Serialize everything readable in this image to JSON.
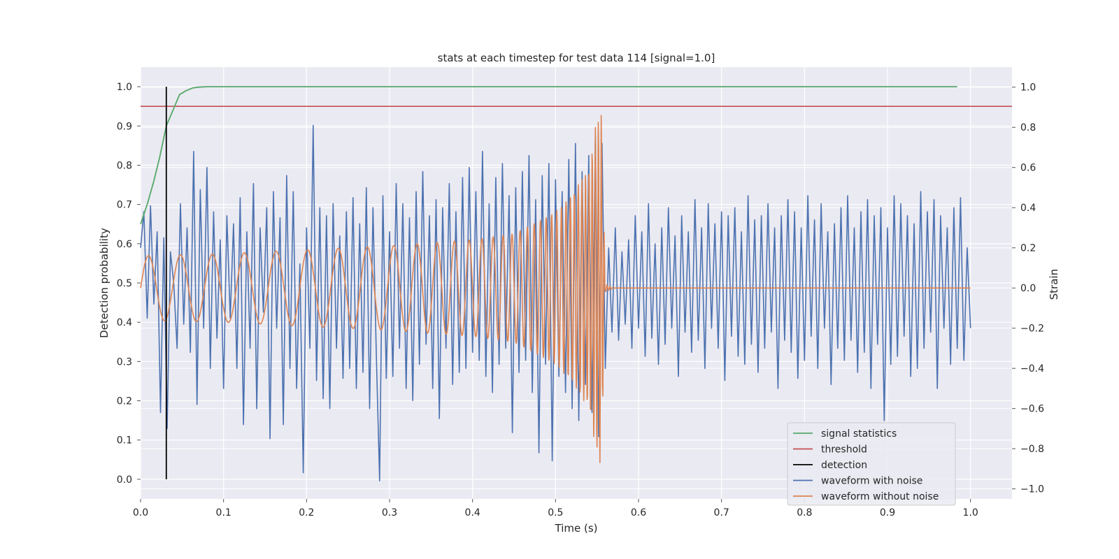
{
  "chart_data": {
    "type": "line",
    "title": "stats at each timestep for test data 114 [signal=1.0]",
    "xlabel": "Time (s)",
    "ylabel_left": "Detection probability",
    "ylabel_right": "Strain",
    "xlim": [
      0.0,
      1.05
    ],
    "ylim_left": [
      -0.05,
      1.05
    ],
    "ylim_right": [
      -1.05,
      1.1
    ],
    "x_ticks": [
      "0.0",
      "0.1",
      "0.2",
      "0.3",
      "0.4",
      "0.5",
      "0.6",
      "0.7",
      "0.8",
      "0.9",
      "1.0"
    ],
    "y_ticks_left": [
      "0.0",
      "0.1",
      "0.2",
      "0.3",
      "0.4",
      "0.5",
      "0.6",
      "0.7",
      "0.8",
      "0.9",
      "1.0"
    ],
    "y_ticks_right": [
      "−1.0",
      "−0.8",
      "−0.6",
      "−0.4",
      "−0.2",
      "0.0",
      "0.2",
      "0.4",
      "0.6",
      "0.8",
      "1.0"
    ],
    "grid": true,
    "legend_position": "bottom-right",
    "series": [
      {
        "name": "signal statistics",
        "axis": "left",
        "color": "#55a868",
        "x": [
          0.0,
          0.008,
          0.016,
          0.023,
          0.031,
          0.039,
          0.047,
          0.055,
          0.063,
          0.07,
          0.08,
          0.1,
          0.2,
          0.4,
          0.6,
          0.8,
          0.984
        ],
        "y": [
          0.65,
          0.7,
          0.76,
          0.82,
          0.9,
          0.94,
          0.98,
          0.99,
          0.997,
          0.999,
          1.0,
          1.0,
          1.0,
          1.0,
          1.0,
          1.0,
          1.0
        ]
      },
      {
        "name": "threshold",
        "axis": "left",
        "color": "#c44e52",
        "x": [
          0.0,
          1.05
        ],
        "y": [
          0.95,
          0.95
        ]
      },
      {
        "name": "detection",
        "axis": "left",
        "color": "#000000",
        "x": [
          0.031,
          0.031
        ],
        "y": [
          0.0,
          1.0
        ]
      },
      {
        "name": "waveform with noise",
        "axis": "right",
        "color": "#4c72b0",
        "x": [
          0.0,
          0.004,
          0.008,
          0.012,
          0.016,
          0.02,
          0.024,
          0.028,
          0.032,
          0.036,
          0.04,
          0.044,
          0.048,
          0.052,
          0.056,
          0.06,
          0.064,
          0.068,
          0.072,
          0.076,
          0.08,
          0.084,
          0.088,
          0.092,
          0.096,
          0.1,
          0.104,
          0.108,
          0.112,
          0.116,
          0.12,
          0.124,
          0.128,
          0.132,
          0.136,
          0.14,
          0.144,
          0.148,
          0.152,
          0.156,
          0.16,
          0.164,
          0.168,
          0.172,
          0.176,
          0.18,
          0.184,
          0.188,
          0.192,
          0.196,
          0.2,
          0.204,
          0.208,
          0.212,
          0.216,
          0.22,
          0.224,
          0.228,
          0.232,
          0.236,
          0.24,
          0.244,
          0.248,
          0.252,
          0.256,
          0.26,
          0.264,
          0.268,
          0.272,
          0.276,
          0.28,
          0.284,
          0.288,
          0.292,
          0.296,
          0.3,
          0.304,
          0.308,
          0.312,
          0.316,
          0.32,
          0.324,
          0.328,
          0.332,
          0.336,
          0.34,
          0.344,
          0.348,
          0.352,
          0.356,
          0.36,
          0.364,
          0.368,
          0.372,
          0.376,
          0.38,
          0.384,
          0.388,
          0.392,
          0.396,
          0.4,
          0.404,
          0.408,
          0.412,
          0.416,
          0.42,
          0.424,
          0.428,
          0.432,
          0.436,
          0.44,
          0.444,
          0.448,
          0.452,
          0.456,
          0.46,
          0.464,
          0.468,
          0.472,
          0.476,
          0.48,
          0.484,
          0.488,
          0.492,
          0.496,
          0.5,
          0.504,
          0.508,
          0.512,
          0.516,
          0.52,
          0.524,
          0.528,
          0.532,
          0.536,
          0.54,
          0.544,
          0.548,
          0.552,
          0.556,
          0.56,
          0.564,
          0.568,
          0.572,
          0.576,
          0.58,
          0.584,
          0.588,
          0.592,
          0.596,
          0.6,
          0.604,
          0.608,
          0.612,
          0.616,
          0.62,
          0.624,
          0.628,
          0.632,
          0.636,
          0.64,
          0.644,
          0.648,
          0.652,
          0.656,
          0.66,
          0.664,
          0.668,
          0.672,
          0.676,
          0.68,
          0.684,
          0.688,
          0.692,
          0.696,
          0.7,
          0.704,
          0.708,
          0.712,
          0.716,
          0.72,
          0.724,
          0.728,
          0.732,
          0.736,
          0.74,
          0.744,
          0.748,
          0.752,
          0.756,
          0.76,
          0.764,
          0.768,
          0.772,
          0.776,
          0.78,
          0.784,
          0.788,
          0.792,
          0.796,
          0.8,
          0.804,
          0.808,
          0.812,
          0.816,
          0.82,
          0.824,
          0.828,
          0.832,
          0.836,
          0.84,
          0.844,
          0.848,
          0.852,
          0.856,
          0.86,
          0.864,
          0.868,
          0.872,
          0.876,
          0.88,
          0.884,
          0.888,
          0.892,
          0.896,
          0.9,
          0.904,
          0.908,
          0.912,
          0.916,
          0.92,
          0.924,
          0.928,
          0.932,
          0.936,
          0.94,
          0.944,
          0.948,
          0.952,
          0.956,
          0.96,
          0.964,
          0.968,
          0.972,
          0.976,
          0.98,
          0.984,
          0.988,
          0.992,
          0.996,
          1.0
        ],
        "y": [
          0.2,
          0.38,
          -0.15,
          0.41,
          -0.08,
          0.28,
          -0.62,
          0.25,
          -0.7,
          0.18,
          0.02,
          -0.3,
          0.42,
          -0.18,
          0.3,
          -0.32,
          0.68,
          -0.58,
          0.49,
          -0.2,
          0.6,
          -0.4,
          0.38,
          -0.25,
          0.24,
          -0.5,
          0.36,
          -0.15,
          0.32,
          -0.4,
          0.45,
          -0.68,
          0.28,
          -0.3,
          0.52,
          -0.6,
          0.3,
          -0.12,
          0.4,
          -0.75,
          0.48,
          -0.2,
          0.35,
          -0.68,
          0.56,
          -0.4,
          0.48,
          -0.5,
          0.12,
          -0.92,
          0.3,
          -0.3,
          0.81,
          -0.46,
          0.4,
          -0.55,
          0.36,
          -0.6,
          0.42,
          -0.3,
          0.26,
          -0.45,
          0.38,
          -0.4,
          0.45,
          -0.5,
          0.32,
          -0.42,
          0.5,
          -0.6,
          0.4,
          -0.32,
          -0.96,
          0.46,
          -0.45,
          0.28,
          -0.44,
          0.52,
          -0.3,
          0.42,
          -0.5,
          0.35,
          -0.56,
          0.48,
          -0.38,
          0.58,
          -0.28,
          0.36,
          -0.5,
          0.44,
          -0.65,
          0.4,
          -0.3,
          0.52,
          -0.48,
          0.38,
          -0.42,
          0.55,
          -0.4,
          0.6,
          -0.32,
          0.48,
          -0.36,
          0.68,
          -0.44,
          0.42,
          -0.52,
          0.55,
          -0.38,
          0.62,
          -0.3,
          0.46,
          -0.72,
          0.5,
          -0.42,
          0.58,
          -0.36,
          0.66,
          -0.52,
          0.44,
          -0.82,
          0.56,
          -0.38,
          0.62,
          -0.86,
          0.54,
          -0.44,
          0.48,
          -0.52,
          0.64,
          -0.6,
          0.72,
          -0.66,
          0.58,
          -0.48,
          0.66,
          -0.62,
          0.76,
          -0.74,
          0.72,
          -0.4,
          0.2,
          -0.22,
          0.3,
          -0.26,
          0.18,
          -0.18,
          0.24,
          -0.3,
          0.36,
          -0.2,
          0.28,
          -0.34,
          0.42,
          -0.25,
          0.22,
          -0.38,
          0.3,
          -0.28,
          0.4,
          -0.2,
          0.26,
          -0.44,
          0.36,
          -0.22,
          0.28,
          -0.32,
          0.44,
          -0.26,
          0.3,
          -0.4,
          0.42,
          -0.2,
          0.32,
          -0.3,
          0.38,
          -0.46,
          0.36,
          -0.24,
          0.4,
          -0.34,
          0.28,
          -0.38,
          0.46,
          -0.28,
          0.34,
          -0.42,
          0.36,
          -0.3,
          0.42,
          -0.22,
          0.3,
          -0.5,
          0.36,
          -0.26,
          0.44,
          -0.32,
          0.38,
          -0.45,
          0.3,
          -0.36,
          0.46,
          -0.24,
          0.34,
          -0.4,
          0.42,
          -0.2,
          0.28,
          -0.48,
          0.32,
          -0.3,
          0.4,
          -0.36,
          0.46,
          -0.26,
          0.3,
          -0.42,
          0.38,
          -0.32,
          0.44,
          -0.5,
          0.36,
          -0.28,
          0.4,
          -0.66,
          0.3,
          -0.38,
          0.46,
          -0.34,
          0.42,
          -0.24,
          0.36,
          -0.44,
          0.32,
          -0.4,
          0.48,
          -0.3,
          0.38,
          -0.22,
          0.44,
          -0.5,
          0.36,
          -0.2,
          0.3,
          -0.38,
          0.4,
          -0.3,
          0.45,
          -0.36,
          0.2,
          -0.2
        ]
      },
      {
        "name": "waveform without noise",
        "axis": "right",
        "color": "#dd8452",
        "envelope": [
          [
            0.0,
            0.16
          ],
          [
            0.1,
            0.17
          ],
          [
            0.2,
            0.19
          ],
          [
            0.3,
            0.21
          ],
          [
            0.4,
            0.24
          ],
          [
            0.45,
            0.27
          ],
          [
            0.5,
            0.38
          ],
          [
            0.52,
            0.47
          ],
          [
            0.54,
            0.6
          ],
          [
            0.548,
            0.8
          ],
          [
            0.555,
            0.9
          ],
          [
            0.56,
            0.02
          ],
          [
            0.565,
            0.01
          ],
          [
            0.57,
            0.0
          ],
          [
            1.0,
            0.0
          ]
        ],
        "freq_start_hz": 26,
        "freq_end_hz": 290,
        "merger_time": 0.556
      }
    ]
  },
  "legend": {
    "items": [
      "signal statistics",
      "threshold",
      "detection",
      "waveform with noise",
      "waveform without noise"
    ]
  }
}
